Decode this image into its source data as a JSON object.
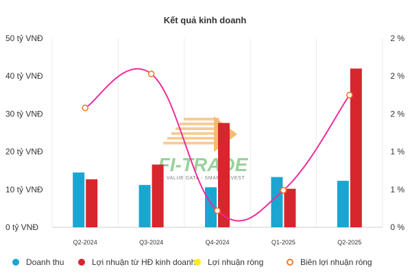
{
  "chart_data": {
    "type": "bar",
    "title": "Kết quả kinh doanh",
    "categories": [
      "Q2-2024",
      "Q3-2024",
      "Q4-2024",
      "Q1-2025",
      "Q2-2025"
    ],
    "y_left": {
      "range": [
        0,
        50
      ],
      "ticks": [
        0,
        10,
        20,
        30,
        40,
        50
      ],
      "tick_labels": [
        "0 tỷ VNĐ",
        "10 tỷ VNĐ",
        "20 tỷ VNĐ",
        "30 tỷ VNĐ",
        "40 tỷ VNĐ",
        "50 tỷ VNĐ"
      ]
    },
    "y_right": {
      "range": [
        0,
        2.5
      ],
      "ticks": [
        0,
        0.5,
        1,
        1.5,
        2,
        2.5
      ],
      "tick_labels": [
        "0 %",
        "1 %",
        "1 %",
        "2 %",
        "2 %",
        "2 %"
      ]
    },
    "grid": "vertical",
    "legend_position": "bottom",
    "series": [
      {
        "name": "Doanh thu",
        "type": "bar",
        "axis": "left",
        "color": "#1aa6d0",
        "values": [
          14.5,
          11.2,
          10.6,
          13.3,
          12.3
        ]
      },
      {
        "name": "Lợi nhuận từ HĐ kinh doanh",
        "type": "bar",
        "axis": "left",
        "color": "#d7262d",
        "values": [
          12.7,
          16.6,
          27.6,
          10.2,
          42.0
        ]
      },
      {
        "name": "Lợi nhuận ròng",
        "type": "bar",
        "axis": "left",
        "color": "#ffeb1a",
        "values": [
          0,
          0,
          0,
          0,
          0
        ]
      },
      {
        "name": "Biên lợi nhuận ròng",
        "type": "line",
        "axis": "right",
        "color": "#ef2a9a",
        "marker_color": "#f07a2a",
        "values": [
          1.58,
          2.03,
          0.22,
          0.49,
          1.75
        ]
      }
    ],
    "watermark": {
      "text": "FI-TRADE",
      "tagline": "VALUE DATA - SMART INVEST"
    }
  }
}
